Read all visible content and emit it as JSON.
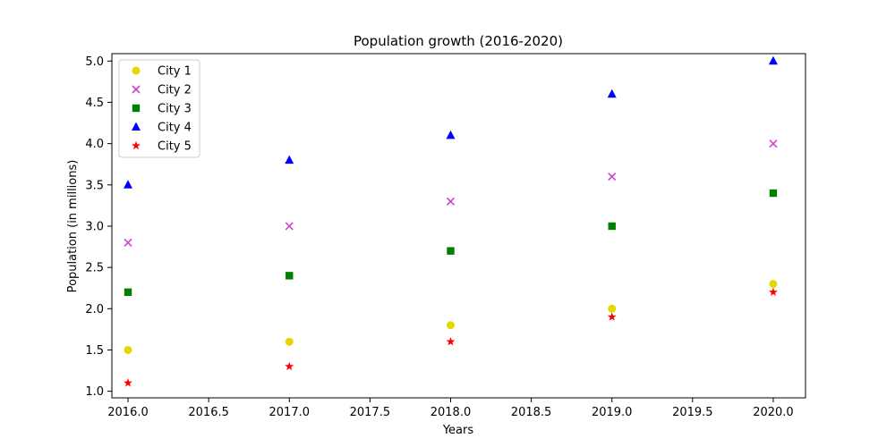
{
  "chart_data": {
    "type": "scatter",
    "title": "Population growth (2016-2020)",
    "xlabel": "Years",
    "ylabel": "Population (in millions)",
    "xlim": [
      2015.9,
      2020.2
    ],
    "ylim": [
      0.92,
      5.09
    ],
    "x_ticks": [
      "2016.0",
      "2016.5",
      "2017.0",
      "2017.5",
      "2018.0",
      "2018.5",
      "2019.0",
      "2019.5",
      "2020.0"
    ],
    "y_ticks": [
      "1.0",
      "1.5",
      "2.0",
      "2.5",
      "3.0",
      "3.5",
      "4.0",
      "4.5",
      "5.0"
    ],
    "grid": false,
    "legend_position": "top-left",
    "x": [
      2016,
      2017,
      2018,
      2019,
      2020
    ],
    "series": [
      {
        "name": "City 1",
        "values": [
          1.5,
          1.6,
          1.8,
          2.0,
          2.3
        ],
        "color": "#e3d800",
        "marker": "circle"
      },
      {
        "name": "City 2",
        "values": [
          2.8,
          3.0,
          3.3,
          3.6,
          4.0
        ],
        "color": "#cc44cc",
        "marker": "x"
      },
      {
        "name": "City 3",
        "values": [
          2.2,
          2.4,
          2.7,
          3.0,
          3.4
        ],
        "color": "#007f00",
        "marker": "square"
      },
      {
        "name": "City 4",
        "values": [
          3.5,
          3.8,
          4.1,
          4.6,
          5.0
        ],
        "color": "#0000ff",
        "marker": "triangle"
      },
      {
        "name": "City 5",
        "values": [
          1.1,
          1.3,
          1.6,
          1.9,
          2.2
        ],
        "color": "#ff0000",
        "marker": "star"
      }
    ]
  }
}
